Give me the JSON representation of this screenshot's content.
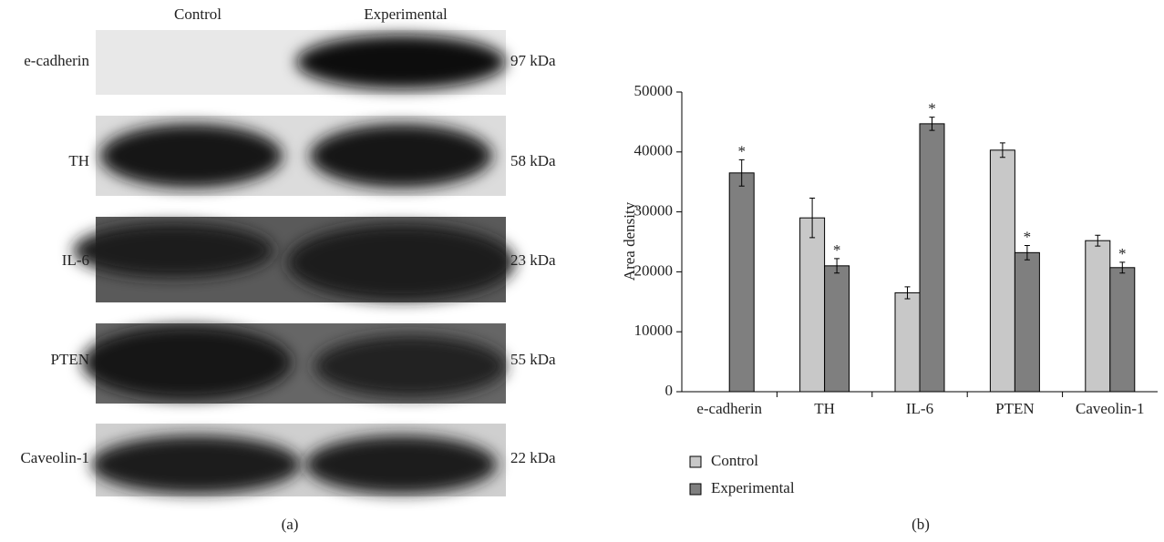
{
  "blot": {
    "columns": [
      "Control",
      "Experimental"
    ],
    "rows": [
      {
        "protein": "e-cadherin",
        "size": "97 kDa"
      },
      {
        "protein": "TH",
        "size": "58 kDa"
      },
      {
        "protein": "IL-6",
        "size": "23 kDa"
      },
      {
        "protein": "PTEN",
        "size": "55 kDa"
      },
      {
        "protein": "Caveolin-1",
        "size": "22 kDa"
      }
    ],
    "panel_label": "(a)"
  },
  "chart_data": {
    "type": "bar",
    "panel_label": "(b)",
    "y_label": "Area density",
    "categories": [
      "e-cadherin",
      "TH",
      "IL-6",
      "PTEN",
      "Caveolin-1"
    ],
    "series": [
      {
        "name": "Control",
        "color": "#c8c8c8",
        "values": [
          null,
          29000,
          16500,
          40300,
          25200
        ],
        "errors": [
          null,
          3300,
          1000,
          1200,
          900
        ]
      },
      {
        "name": "Experimental",
        "color": "#7f7f7f",
        "values": [
          36500,
          21000,
          44700,
          23200,
          20700
        ],
        "errors": [
          2200,
          1200,
          1100,
          1200,
          900
        ],
        "markers": [
          "*",
          "*",
          "*",
          "*",
          "*"
        ]
      }
    ],
    "ylim": [
      0,
      50000
    ],
    "yticks": [
      0,
      10000,
      20000,
      30000,
      40000,
      50000
    ],
    "grid": false
  }
}
